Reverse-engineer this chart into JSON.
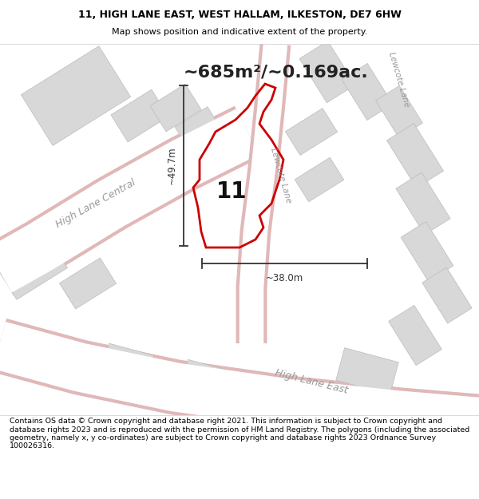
{
  "title_line1": "11, HIGH LANE EAST, WEST HALLAM, ILKESTON, DE7 6HW",
  "title_line2": "Map shows position and indicative extent of the property.",
  "area_text": "~685m²/~0.169ac.",
  "dim_vertical": "~49.7m",
  "dim_horizontal": "~38.0m",
  "property_number": "11",
  "footer_text": "Contains OS data © Crown copyright and database right 2021. This information is subject to Crown copyright and database rights 2023 and is reproduced with the permission of HM Land Registry. The polygons (including the associated geometry, namely x, y co-ordinates) are subject to Crown copyright and database rights 2023 Ordnance Survey 100026316.",
  "bg_color": "#f2f0ec",
  "road_color": "#ffffff",
  "road_stripe_color": "#e8b0b0",
  "property_fill": "none",
  "property_edge": "#cc0000",
  "building_fill": "#d8d8d8",
  "building_edge": "#bbbbbb",
  "road_outline_color": "#e0b8b8",
  "text_color": "#000000",
  "road_label_color": "#999999",
  "header_bg": "#ffffff",
  "footer_bg": "#ffffff",
  "dim_line_color": "#333333"
}
